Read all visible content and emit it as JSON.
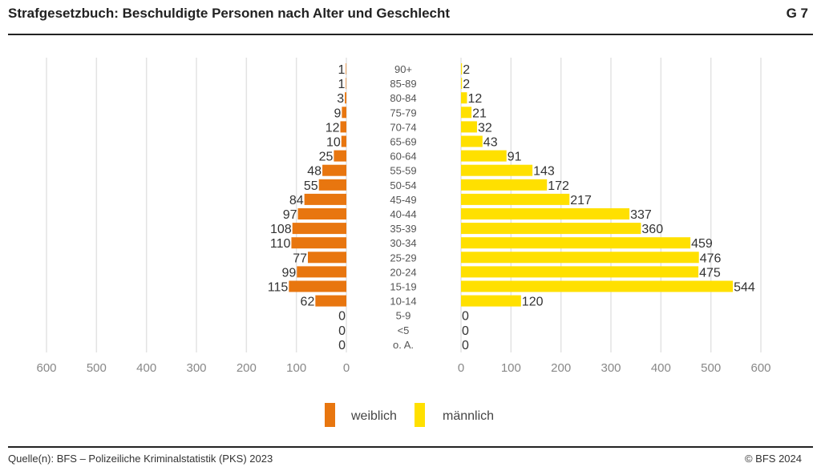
{
  "header": {
    "title": "Strafgesetzbuch: Beschuldigte Personen nach Alter und Geschlecht",
    "code": "G 7"
  },
  "footer": {
    "source": "Quelle(n): BFS – Polizeiliche Kriminalstatistik (PKS) 2023",
    "copyright": "© BFS 2024"
  },
  "chart_data": {
    "type": "bar",
    "orientation": "horizontal-population-pyramid",
    "categories": [
      "90+",
      "85-89",
      "80-84",
      "75-79",
      "70-74",
      "65-69",
      "60-64",
      "55-59",
      "50-54",
      "45-49",
      "40-44",
      "35-39",
      "30-34",
      "25-29",
      "20-24",
      "15-19",
      "10-14",
      "5-9",
      "<5",
      "o. A."
    ],
    "series": [
      {
        "name": "weiblich",
        "color": "#E8760F",
        "values": [
          1,
          1,
          3,
          9,
          12,
          10,
          25,
          48,
          55,
          84,
          97,
          108,
          110,
          77,
          99,
          115,
          62,
          0,
          0,
          0
        ]
      },
      {
        "name": "männlich",
        "color": "#FFE000",
        "values": [
          2,
          2,
          12,
          21,
          32,
          43,
          91,
          143,
          172,
          217,
          337,
          360,
          459,
          476,
          475,
          544,
          120,
          0,
          0,
          0
        ]
      }
    ],
    "xlim": [
      0,
      600
    ],
    "xticks": [
      0,
      100,
      200,
      300,
      400,
      500,
      600
    ],
    "grid": true,
    "legend": "bottom-center",
    "data_labels": true
  }
}
